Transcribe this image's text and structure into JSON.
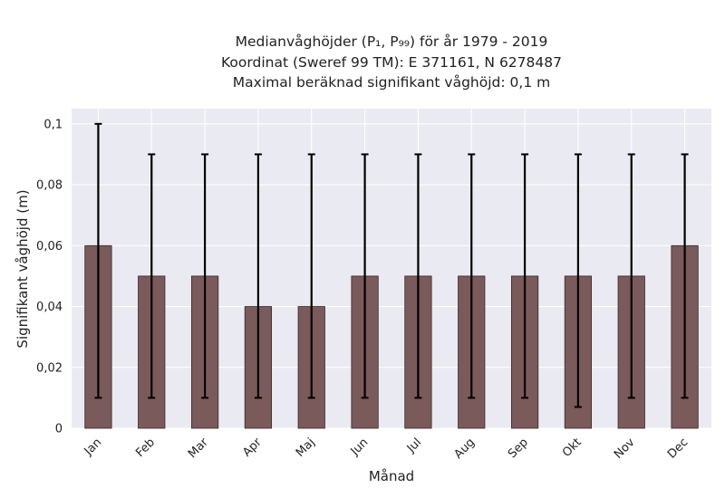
{
  "chart_data": {
    "type": "bar",
    "title_lines": [
      "Medianvåghöjder (P₁, P₉₉) för år 1979 - 2019",
      "Koordinat (Sweref 99 TM): E 371161, N 6278487",
      "Maximal beräknad signifikant våghöjd: 0,1 m"
    ],
    "xlabel": "Månad",
    "ylabel": "Signifikant våghöjd (m)",
    "categories": [
      "Jan",
      "Feb",
      "Mar",
      "Apr",
      "Maj",
      "Jun",
      "Jul",
      "Aug",
      "Sep",
      "Okt",
      "Nov",
      "Dec"
    ],
    "values": [
      0.06,
      0.05,
      0.05,
      0.04,
      0.04,
      0.05,
      0.05,
      0.05,
      0.05,
      0.05,
      0.05,
      0.06
    ],
    "p1": [
      0.01,
      0.01,
      0.01,
      0.01,
      0.01,
      0.01,
      0.01,
      0.01,
      0.01,
      0.007,
      0.01,
      0.01
    ],
    "p99": [
      0.1,
      0.09,
      0.09,
      0.09,
      0.09,
      0.09,
      0.09,
      0.09,
      0.09,
      0.09,
      0.09,
      0.09
    ],
    "yticks": [
      0,
      0.02,
      0.04,
      0.06,
      0.08,
      0.1
    ],
    "ytick_labels": [
      "0",
      "0,02",
      "0,04",
      "0,06",
      "0,08",
      "0,1"
    ],
    "ylim": [
      0,
      0.105
    ],
    "grid": true,
    "colors": {
      "bar": "#7a5a5a",
      "bar_edge": "#3a2828",
      "errorbar": "#000000",
      "plot_bg": "#eaeaf2",
      "grid": "#ffffff"
    }
  }
}
